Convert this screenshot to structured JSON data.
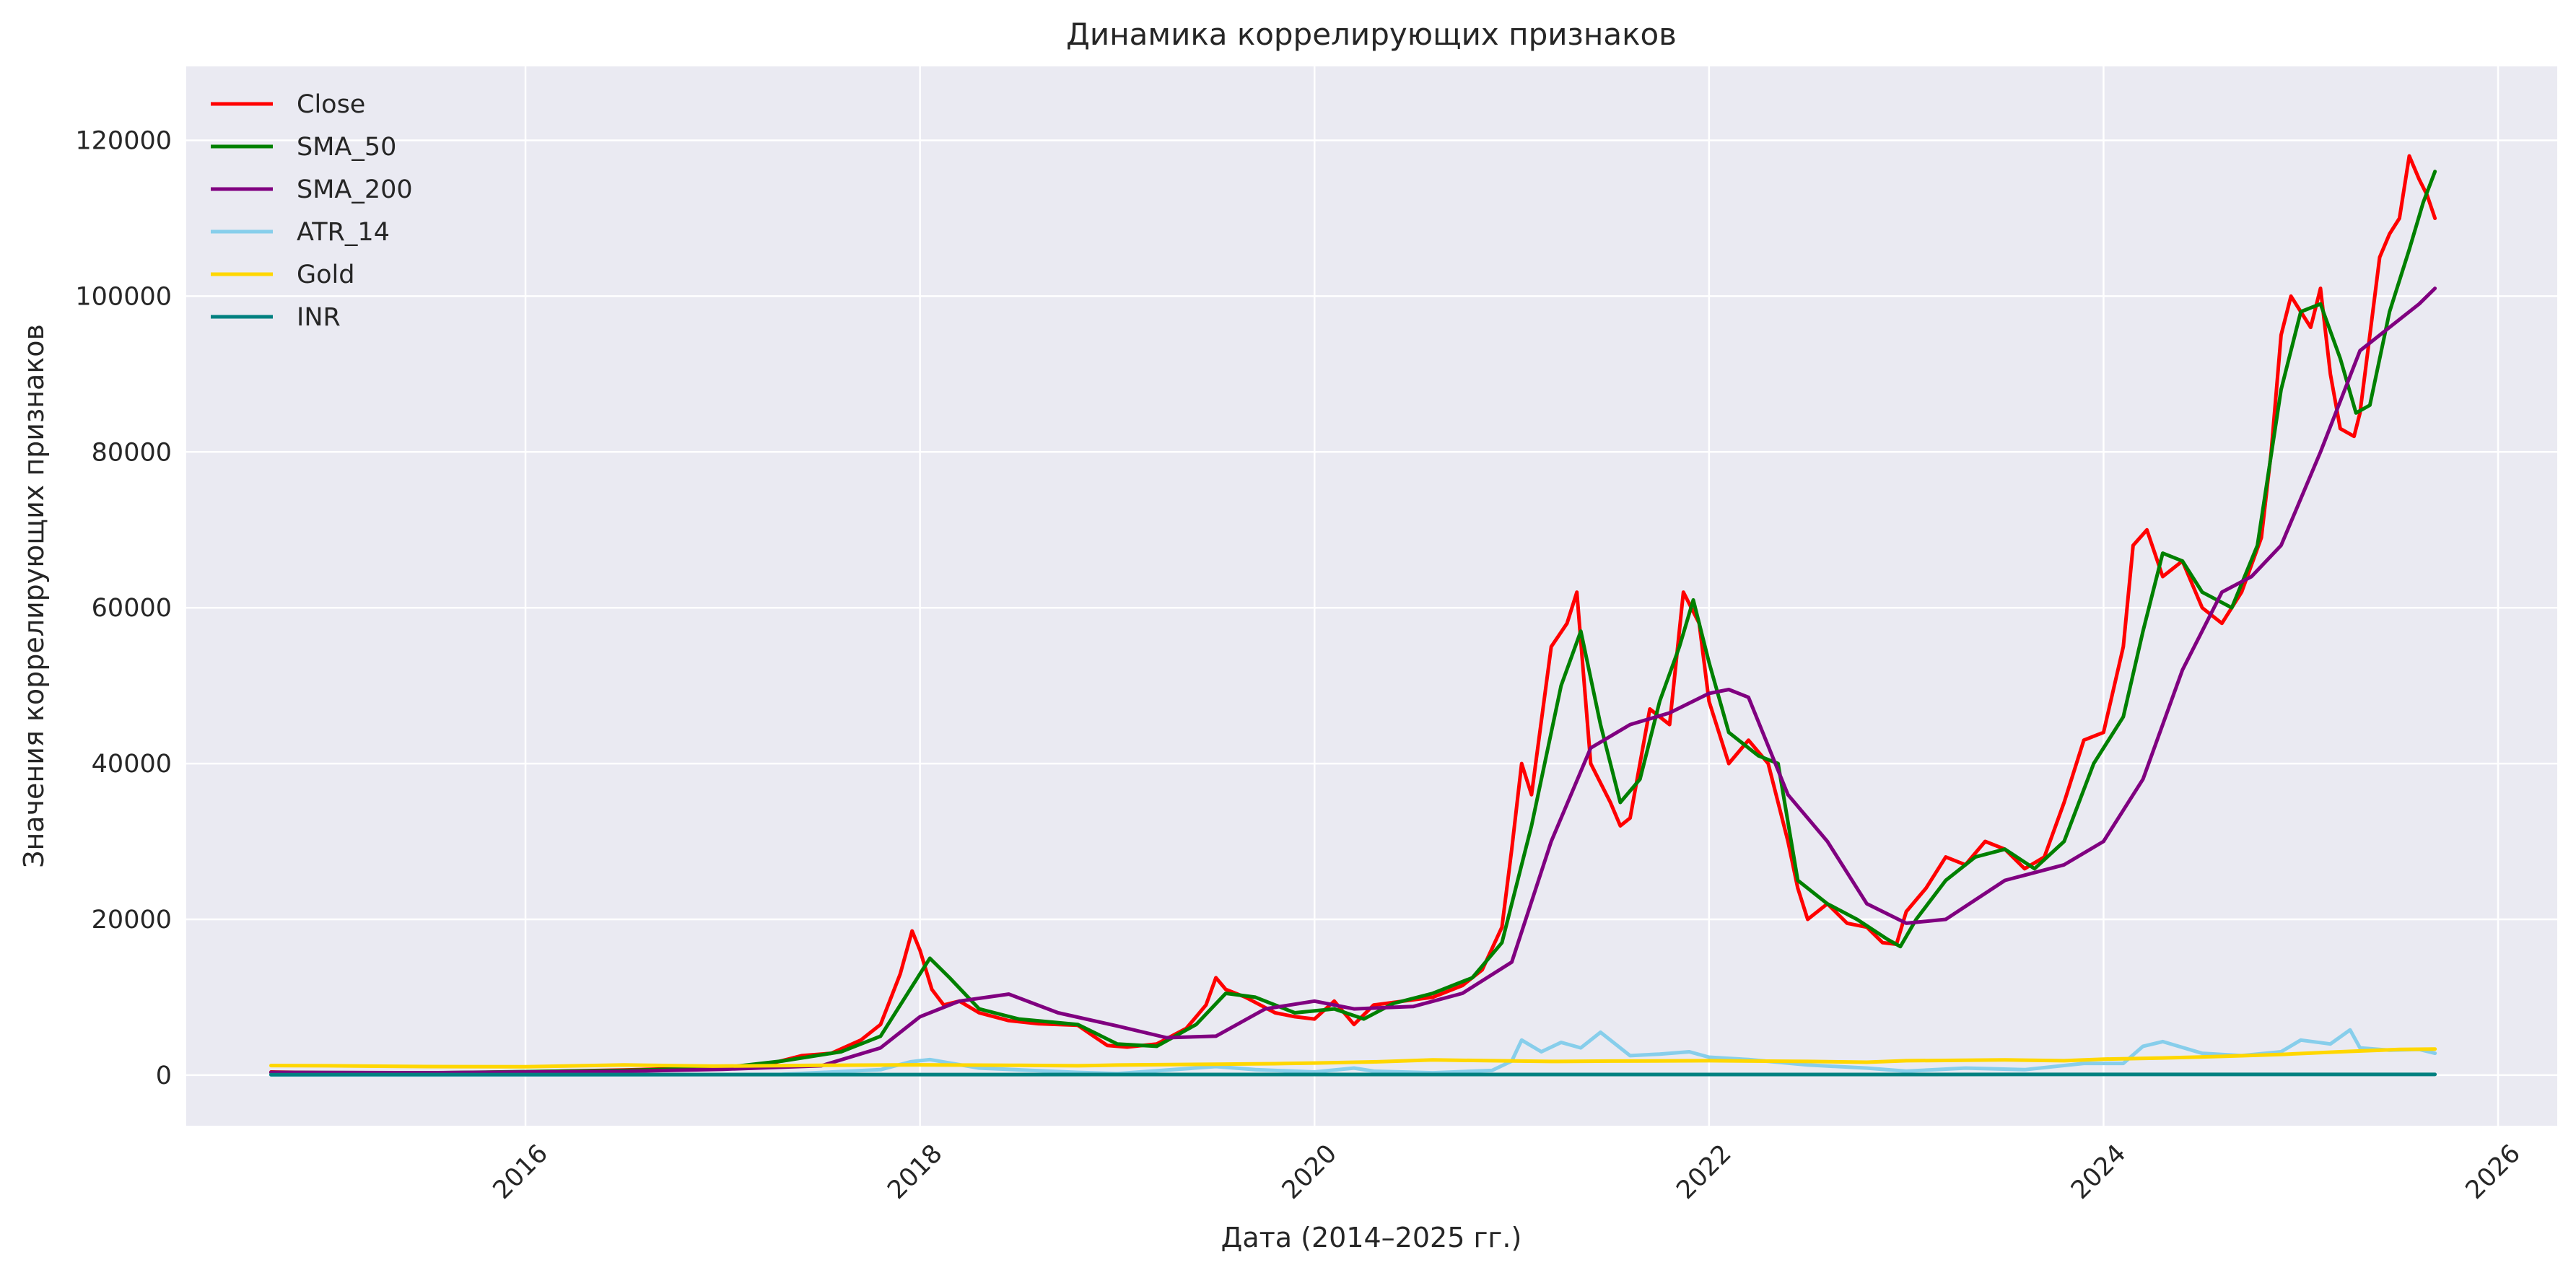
{
  "chart_data": {
    "type": "line",
    "title": "Динамика коррелирующих признаков",
    "xlabel": "Дата (2014–2025 гг.)",
    "ylabel": "Значения коррелирующих признаков",
    "xlim": [
      2014.28,
      2026.3
    ],
    "ylim": [
      -6500,
      129500
    ],
    "x_ticks": [
      2016,
      2018,
      2020,
      2022,
      2024,
      2026
    ],
    "y_ticks": [
      0,
      20000,
      40000,
      60000,
      80000,
      100000,
      120000
    ],
    "grid": true,
    "legend_position": "top-left",
    "colors": {
      "background": "#eaeaf2",
      "grid": "#ffffff"
    },
    "series": [
      {
        "name": "Close",
        "color": "#ff0000",
        "x": [
          2014.71,
          2015.0,
          2015.5,
          2016.0,
          2016.5,
          2017.0,
          2017.2,
          2017.4,
          2017.55,
          2017.7,
          2017.8,
          2017.9,
          2017.96,
          2018.0,
          2018.06,
          2018.12,
          2018.2,
          2018.3,
          2018.45,
          2018.6,
          2018.8,
          2018.88,
          2018.95,
          2019.05,
          2019.2,
          2019.35,
          2019.45,
          2019.5,
          2019.55,
          2019.65,
          2019.8,
          2019.9,
          2020.0,
          2020.1,
          2020.2,
          2020.3,
          2020.45,
          2020.6,
          2020.75,
          2020.85,
          2020.95,
          2021.0,
          2021.05,
          2021.1,
          2021.2,
          2021.28,
          2021.33,
          2021.4,
          2021.5,
          2021.55,
          2021.6,
          2021.7,
          2021.8,
          2021.87,
          2021.95,
          2022.0,
          2022.1,
          2022.2,
          2022.3,
          2022.4,
          2022.45,
          2022.5,
          2022.6,
          2022.7,
          2022.8,
          2022.88,
          2022.95,
          2023.0,
          2023.1,
          2023.2,
          2023.3,
          2023.4,
          2023.5,
          2023.6,
          2023.7,
          2023.8,
          2023.9,
          2024.0,
          2024.1,
          2024.15,
          2024.22,
          2024.3,
          2024.4,
          2024.5,
          2024.6,
          2024.7,
          2024.8,
          2024.85,
          2024.9,
          2024.95,
          2025.0,
          2025.05,
          2025.1,
          2025.15,
          2025.2,
          2025.27,
          2025.3,
          2025.35,
          2025.4,
          2025.45,
          2025.5,
          2025.55,
          2025.6,
          2025.64,
          2025.68
        ],
        "values": [
          400,
          300,
          250,
          430,
          650,
          1000,
          1200,
          2500,
          2800,
          4500,
          6500,
          13000,
          18500,
          16000,
          11000,
          9000,
          9500,
          8000,
          7000,
          6600,
          6400,
          5000,
          3800,
          3600,
          4000,
          6000,
          9000,
          12500,
          11000,
          10000,
          8000,
          7500,
          7200,
          9500,
          6500,
          9000,
          9500,
          10000,
          11500,
          13500,
          19000,
          29000,
          40000,
          36000,
          55000,
          58000,
          62000,
          40000,
          35000,
          32000,
          33000,
          47000,
          45000,
          62000,
          58000,
          48000,
          40000,
          43000,
          40000,
          30000,
          24000,
          20000,
          22000,
          19500,
          19000,
          17000,
          16800,
          21000,
          24000,
          28000,
          27000,
          30000,
          29000,
          26500,
          28000,
          35000,
          43000,
          44000,
          55000,
          68000,
          70000,
          64000,
          66000,
          60000,
          58000,
          62000,
          69000,
          80000,
          95000,
          100000,
          98000,
          96000,
          101000,
          90000,
          83000,
          82000,
          85000,
          95000,
          105000,
          108000,
          110000,
          118000,
          115000,
          113000,
          110000
        ]
      },
      {
        "name": "SMA_50",
        "color": "#008000",
        "x": [
          2014.71,
          2015.5,
          2016.5,
          2017.0,
          2017.3,
          2017.6,
          2017.8,
          2017.95,
          2018.05,
          2018.15,
          2018.3,
          2018.5,
          2018.8,
          2019.0,
          2019.2,
          2019.4,
          2019.55,
          2019.7,
          2019.9,
          2020.1,
          2020.25,
          2020.4,
          2020.6,
          2020.8,
          2020.95,
          2021.1,
          2021.25,
          2021.35,
          2021.45,
          2021.55,
          2021.65,
          2021.75,
          2021.85,
          2021.92,
          2022.0,
          2022.1,
          2022.25,
          2022.35,
          2022.45,
          2022.6,
          2022.75,
          2022.9,
          2022.97,
          2023.05,
          2023.2,
          2023.35,
          2023.5,
          2023.65,
          2023.8,
          2023.95,
          2024.1,
          2024.2,
          2024.3,
          2024.4,
          2024.5,
          2024.65,
          2024.78,
          2024.9,
          2025.0,
          2025.1,
          2025.2,
          2025.28,
          2025.35,
          2025.45,
          2025.55,
          2025.62,
          2025.68
        ],
        "values": [
          350,
          280,
          600,
          950,
          1800,
          3000,
          5000,
          11000,
          15000,
          12500,
          8500,
          7200,
          6500,
          4000,
          3700,
          6500,
          10500,
          10000,
          8000,
          8500,
          7200,
          9200,
          10500,
          12500,
          17000,
          32000,
          50000,
          57000,
          45000,
          35000,
          38000,
          48000,
          55000,
          61000,
          53000,
          44000,
          41000,
          40000,
          25000,
          22000,
          20000,
          17500,
          16500,
          20000,
          25000,
          28000,
          29000,
          26500,
          30000,
          40000,
          46000,
          57000,
          67000,
          66000,
          62000,
          60000,
          68000,
          88000,
          98000,
          99000,
          92000,
          85000,
          86000,
          98000,
          106000,
          112000,
          116000
        ]
      },
      {
        "name": "SMA_200",
        "color": "#800080",
        "x": [
          2014.71,
          2015.5,
          2016.5,
          2017.0,
          2017.5,
          2017.8,
          2018.0,
          2018.2,
          2018.45,
          2018.7,
          2019.0,
          2019.25,
          2019.5,
          2019.75,
          2020.0,
          2020.2,
          2020.5,
          2020.75,
          2021.0,
          2021.2,
          2021.4,
          2021.6,
          2021.8,
          2022.0,
          2022.1,
          2022.2,
          2022.4,
          2022.6,
          2022.8,
          2023.0,
          2023.2,
          2023.5,
          2023.8,
          2024.0,
          2024.2,
          2024.4,
          2024.6,
          2024.75,
          2024.9,
          2025.1,
          2025.3,
          2025.45,
          2025.6,
          2025.68
        ],
        "values": [
          350,
          300,
          480,
          750,
          1200,
          3500,
          7500,
          9500,
          10400,
          8000,
          6300,
          4800,
          5000,
          8500,
          9500,
          8500,
          8800,
          10500,
          14500,
          30000,
          42000,
          45000,
          46500,
          49000,
          49500,
          48500,
          36000,
          30000,
          22000,
          19500,
          20000,
          25000,
          27000,
          30000,
          38000,
          52000,
          62000,
          64000,
          68000,
          80000,
          93000,
          96000,
          99000,
          101000
        ]
      },
      {
        "name": "ATR_14",
        "color": "#87ceeb",
        "x": [
          2014.71,
          2015.5,
          2016.5,
          2017.3,
          2017.8,
          2017.95,
          2018.05,
          2018.3,
          2018.8,
          2019.0,
          2019.5,
          2019.7,
          2020.0,
          2020.2,
          2020.3,
          2020.6,
          2020.9,
          2021.0,
          2021.05,
          2021.15,
          2021.25,
          2021.35,
          2021.45,
          2021.6,
          2021.75,
          2021.9,
          2022.0,
          2022.2,
          2022.5,
          2022.8,
          2023.0,
          2023.3,
          2023.6,
          2023.9,
          2024.1,
          2024.2,
          2024.3,
          2024.5,
          2024.7,
          2024.9,
          2025.0,
          2025.15,
          2025.25,
          2025.3,
          2025.45,
          2025.6,
          2025.68
        ],
        "values": [
          20,
          15,
          40,
          100,
          700,
          1700,
          2000,
          900,
          350,
          200,
          1100,
          700,
          400,
          900,
          500,
          300,
          600,
          1800,
          4500,
          3000,
          4200,
          3500,
          5500,
          2500,
          2700,
          3000,
          2300,
          2000,
          1300,
          900,
          500,
          900,
          700,
          1500,
          1500,
          3700,
          4300,
          2800,
          2500,
          3000,
          4500,
          4000,
          5800,
          3500,
          3200,
          3300,
          2800
        ]
      },
      {
        "name": "Gold",
        "color": "#ffd700",
        "x": [
          2014.71,
          2015.0,
          2015.5,
          2016.0,
          2016.5,
          2016.95,
          2017.5,
          2018.0,
          2018.5,
          2018.8,
          2019.0,
          2019.5,
          2019.8,
          2020.0,
          2020.3,
          2020.6,
          2020.9,
          2021.2,
          2021.5,
          2022.0,
          2022.5,
          2022.8,
          2023.0,
          2023.5,
          2023.8,
          2024.0,
          2024.3,
          2024.6,
          2024.9,
          2025.2,
          2025.5,
          2025.68
        ],
        "values": [
          1230,
          1200,
          1100,
          1080,
          1300,
          1150,
          1250,
          1320,
          1250,
          1200,
          1290,
          1400,
          1470,
          1550,
          1700,
          1950,
          1850,
          1750,
          1800,
          1850,
          1750,
          1650,
          1850,
          1950,
          1850,
          2050,
          2200,
          2400,
          2650,
          3000,
          3300,
          3350
        ]
      },
      {
        "name": "INR",
        "color": "#008080",
        "x": [
          2014.71,
          2016.0,
          2018.0,
          2020.0,
          2022.0,
          2024.0,
          2025.68
        ],
        "values": [
          62,
          67,
          65,
          76,
          75,
          83,
          87
        ]
      }
    ]
  }
}
